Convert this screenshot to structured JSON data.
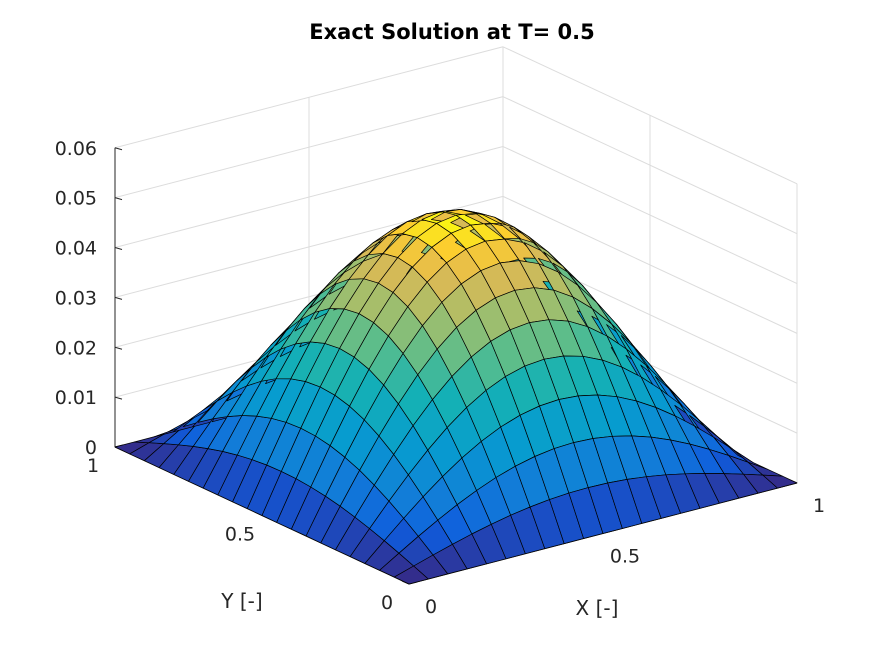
{
  "chart_data": {
    "type": "surface",
    "title": "Exact Solution at T= 0.5",
    "xlabel": "X [-]",
    "ylabel": "Y [-]",
    "zlabel": "",
    "xlim": [
      0,
      1
    ],
    "ylim": [
      0,
      1
    ],
    "zlim": [
      0,
      0.06
    ],
    "x_ticks": [
      "0",
      "0.5",
      "1"
    ],
    "y_ticks": [
      "0",
      "0.5",
      "1"
    ],
    "z_ticks": [
      "0",
      "0.01",
      "0.02",
      "0.03",
      "0.04",
      "0.05",
      "0.06"
    ],
    "grid": true,
    "colormap": "parula",
    "mesh_points_per_axis": 21,
    "function": "z = 0.0501 * sin(pi*x) * sin(pi*y)",
    "peak": {
      "x": 0.5,
      "y": 0.5,
      "z": 0.0501
    }
  }
}
